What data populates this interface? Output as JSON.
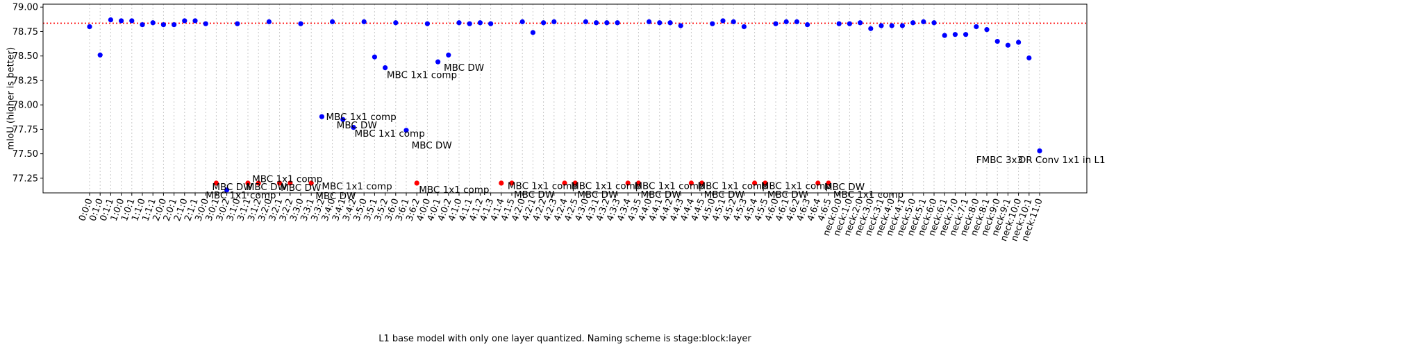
{
  "chart_data": {
    "type": "scatter",
    "xlabel": "L1 base model with only one layer quantized. Naming scheme is stage:block:layer",
    "ylabel": "mIoU (higher is better)",
    "ylim": [
      77.1,
      79.03
    ],
    "yticks": [
      "77.25",
      "77.50",
      "77.75",
      "78.00",
      "78.25",
      "78.50",
      "78.75",
      "79.00"
    ],
    "baseline": 78.835,
    "grid": "vertical dotted at each category",
    "colors": {
      "blue": "#0000ff",
      "red": "#ff0000",
      "baseline": "#ff0000",
      "grid": "#c8c8c8"
    },
    "categories": [
      "0:0:0",
      "0:1:0",
      "0:1:1",
      "1:0:0",
      "1:0:1",
      "1:1:0",
      "1:1:1",
      "2:0:0",
      "2:0:1",
      "2:1:0",
      "2:1:1",
      "3:0:0",
      "3:0:1",
      "3:0:2",
      "3:1:0",
      "3:1:1",
      "3:1:2",
      "3:2:0",
      "3:2:1",
      "3:2:2",
      "3:3:0",
      "3:3:1",
      "3:3:2",
      "3:4:0",
      "3:4:1",
      "3:4:2",
      "3:5:0",
      "3:5:1",
      "3:5:2",
      "3:6:0",
      "3:6:1",
      "3:6:2",
      "4:0:0",
      "4:0:1",
      "4:0:2",
      "4:1:0",
      "4:1:1",
      "4:1:2",
      "4:1:3",
      "4:1:4",
      "4:1:5",
      "4:2:0",
      "4:2:1",
      "4:2:2",
      "4:2:3",
      "4:2:4",
      "4:2:5",
      "4:3:0",
      "4:3:1",
      "4:3:2",
      "4:3:3",
      "4:3:4",
      "4:3:5",
      "4:4:0",
      "4:4:1",
      "4:4:2",
      "4:4:3",
      "4:4:4",
      "4:4:5",
      "4:5:0",
      "4:5:1",
      "4:5:2",
      "4:5:3",
      "4:5:4",
      "4:5:5",
      "4:6:0",
      "4:6:1",
      "4:6:2",
      "4:6:3",
      "4:6:4",
      "4:6:5",
      "neck:0:0",
      "neck:1:0",
      "neck:2:0",
      "neck:3:0",
      "neck:3:1",
      "neck:4:0",
      "neck:4:1",
      "neck:5:0",
      "neck:5:1",
      "neck:6:0",
      "neck:6:1",
      "neck:7:0",
      "neck:7:1",
      "neck:8:0",
      "neck:8:1",
      "neck:9:0",
      "neck:9:1",
      "neck:10:0",
      "neck:10:1",
      "neck:11:0"
    ],
    "points": [
      {
        "i": 0,
        "y": 78.8,
        "c": "blue"
      },
      {
        "i": 1,
        "y": 78.51,
        "c": "blue"
      },
      {
        "i": 2,
        "y": 78.87,
        "c": "blue"
      },
      {
        "i": 3,
        "y": 78.86,
        "c": "blue"
      },
      {
        "i": 4,
        "y": 78.86,
        "c": "blue"
      },
      {
        "i": 5,
        "y": 78.82,
        "c": "blue"
      },
      {
        "i": 6,
        "y": 78.84,
        "c": "blue"
      },
      {
        "i": 7,
        "y": 78.82,
        "c": "blue"
      },
      {
        "i": 8,
        "y": 78.82,
        "c": "blue"
      },
      {
        "i": 9,
        "y": 78.86,
        "c": "blue"
      },
      {
        "i": 10,
        "y": 78.86,
        "c": "blue"
      },
      {
        "i": 11,
        "y": 78.83,
        "c": "blue"
      },
      {
        "i": 12,
        "y": 77.2,
        "c": "red"
      },
      {
        "i": 13,
        "y": 77.13,
        "c": "blue"
      },
      {
        "i": 14,
        "y": 78.83,
        "c": "blue"
      },
      {
        "i": 15,
        "y": 77.2,
        "c": "red"
      },
      {
        "i": 16,
        "y": 77.2,
        "c": "red"
      },
      {
        "i": 17,
        "y": 78.85,
        "c": "blue"
      },
      {
        "i": 18,
        "y": 77.2,
        "c": "red"
      },
      {
        "i": 19,
        "y": 77.2,
        "c": "red"
      },
      {
        "i": 20,
        "y": 78.83,
        "c": "blue"
      },
      {
        "i": 21,
        "y": 77.2,
        "c": "red"
      },
      {
        "i": 22,
        "y": 77.88,
        "c": "blue"
      },
      {
        "i": 23,
        "y": 78.85,
        "c": "blue"
      },
      {
        "i": 24,
        "y": 77.85,
        "c": "blue"
      },
      {
        "i": 25,
        "y": 77.77,
        "c": "blue"
      },
      {
        "i": 26,
        "y": 78.85,
        "c": "blue"
      },
      {
        "i": 27,
        "y": 78.49,
        "c": "blue"
      },
      {
        "i": 28,
        "y": 78.38,
        "c": "blue"
      },
      {
        "i": 29,
        "y": 78.84,
        "c": "blue"
      },
      {
        "i": 30,
        "y": 77.74,
        "c": "blue"
      },
      {
        "i": 31,
        "y": 77.2,
        "c": "red"
      },
      {
        "i": 32,
        "y": 78.83,
        "c": "blue"
      },
      {
        "i": 33,
        "y": 78.44,
        "c": "blue"
      },
      {
        "i": 34,
        "y": 78.51,
        "c": "blue"
      },
      {
        "i": 35,
        "y": 78.84,
        "c": "blue"
      },
      {
        "i": 36,
        "y": 78.83,
        "c": "blue"
      },
      {
        "i": 37,
        "y": 78.84,
        "c": "blue"
      },
      {
        "i": 38,
        "y": 78.83,
        "c": "blue"
      },
      {
        "i": 39,
        "y": 77.2,
        "c": "red"
      },
      {
        "i": 40,
        "y": 77.2,
        "c": "red"
      },
      {
        "i": 41,
        "y": 78.85,
        "c": "blue"
      },
      {
        "i": 42,
        "y": 78.74,
        "c": "blue"
      },
      {
        "i": 43,
        "y": 78.84,
        "c": "blue"
      },
      {
        "i": 44,
        "y": 78.85,
        "c": "blue"
      },
      {
        "i": 45,
        "y": 77.2,
        "c": "red"
      },
      {
        "i": 46,
        "y": 77.2,
        "c": "red"
      },
      {
        "i": 47,
        "y": 78.85,
        "c": "blue"
      },
      {
        "i": 48,
        "y": 78.84,
        "c": "blue"
      },
      {
        "i": 49,
        "y": 78.84,
        "c": "blue"
      },
      {
        "i": 50,
        "y": 78.84,
        "c": "blue"
      },
      {
        "i": 51,
        "y": 77.2,
        "c": "red"
      },
      {
        "i": 52,
        "y": 77.2,
        "c": "red"
      },
      {
        "i": 53,
        "y": 78.85,
        "c": "blue"
      },
      {
        "i": 54,
        "y": 78.84,
        "c": "blue"
      },
      {
        "i": 55,
        "y": 78.84,
        "c": "blue"
      },
      {
        "i": 56,
        "y": 78.81,
        "c": "blue"
      },
      {
        "i": 57,
        "y": 77.2,
        "c": "red"
      },
      {
        "i": 58,
        "y": 77.2,
        "c": "red"
      },
      {
        "i": 59,
        "y": 78.83,
        "c": "blue"
      },
      {
        "i": 60,
        "y": 78.86,
        "c": "blue"
      },
      {
        "i": 61,
        "y": 78.85,
        "c": "blue"
      },
      {
        "i": 62,
        "y": 78.8,
        "c": "blue"
      },
      {
        "i": 63,
        "y": 77.2,
        "c": "red"
      },
      {
        "i": 64,
        "y": 77.2,
        "c": "red"
      },
      {
        "i": 65,
        "y": 78.83,
        "c": "blue"
      },
      {
        "i": 66,
        "y": 78.85,
        "c": "blue"
      },
      {
        "i": 67,
        "y": 78.85,
        "c": "blue"
      },
      {
        "i": 68,
        "y": 78.82,
        "c": "blue"
      },
      {
        "i": 69,
        "y": 77.2,
        "c": "red"
      },
      {
        "i": 70,
        "y": 77.2,
        "c": "red"
      },
      {
        "i": 71,
        "y": 78.83,
        "c": "blue"
      },
      {
        "i": 72,
        "y": 78.83,
        "c": "blue"
      },
      {
        "i": 73,
        "y": 78.84,
        "c": "blue"
      },
      {
        "i": 74,
        "y": 78.78,
        "c": "blue"
      },
      {
        "i": 75,
        "y": 78.81,
        "c": "blue"
      },
      {
        "i": 76,
        "y": 78.81,
        "c": "blue"
      },
      {
        "i": 77,
        "y": 78.81,
        "c": "blue"
      },
      {
        "i": 78,
        "y": 78.84,
        "c": "blue"
      },
      {
        "i": 79,
        "y": 78.85,
        "c": "blue"
      },
      {
        "i": 80,
        "y": 78.84,
        "c": "blue"
      },
      {
        "i": 81,
        "y": 78.71,
        "c": "blue"
      },
      {
        "i": 82,
        "y": 78.72,
        "c": "blue"
      },
      {
        "i": 83,
        "y": 78.72,
        "c": "blue"
      },
      {
        "i": 84,
        "y": 78.8,
        "c": "blue"
      },
      {
        "i": 85,
        "y": 78.77,
        "c": "blue"
      },
      {
        "i": 86,
        "y": 78.65,
        "c": "blue"
      },
      {
        "i": 87,
        "y": 78.61,
        "c": "blue"
      },
      {
        "i": 88,
        "y": 78.64,
        "c": "blue"
      },
      {
        "i": 89,
        "y": 78.48,
        "c": "blue"
      },
      {
        "i": 90,
        "y": 77.53,
        "c": "blue"
      }
    ],
    "annotations": [
      {
        "text": "MBC DW",
        "x": 11.6,
        "y": 77.165
      },
      {
        "text": "MBC 1x1 comp",
        "x": 11.0,
        "y": 77.08
      },
      {
        "text": "MBC DW",
        "x": 14.85,
        "y": 77.165
      },
      {
        "text": "MBC 1x1 comp",
        "x": 15.4,
        "y": 77.245
      },
      {
        "text": "MBC DW",
        "x": 18.1,
        "y": 77.155
      },
      {
        "text": "MBC DW",
        "x": 21.4,
        "y": 77.07
      },
      {
        "text": "MBC 1x1 comp",
        "x": 22.0,
        "y": 77.17
      },
      {
        "text": "MBC 1x1 comp",
        "x": 22.4,
        "y": 77.88
      },
      {
        "text": "MBC DW",
        "x": 23.4,
        "y": 77.795
      },
      {
        "text": "MBC 1x1 comp",
        "x": 25.1,
        "y": 77.71
      },
      {
        "text": "MBC 1x1 comp",
        "x": 28.15,
        "y": 78.31
      },
      {
        "text": "MBC DW",
        "x": 30.5,
        "y": 77.59
      },
      {
        "text": "MBC 1x1 comp",
        "x": 31.2,
        "y": 77.135
      },
      {
        "text": "MBC DW",
        "x": 33.55,
        "y": 78.385
      },
      {
        "text": "MBC 1x1 comp",
        "x": 39.6,
        "y": 77.175
      },
      {
        "text": "MBC DW",
        "x": 40.2,
        "y": 77.085
      },
      {
        "text": "MBC 1x1 comp",
        "x": 45.6,
        "y": 77.175
      },
      {
        "text": "MBC DW",
        "x": 46.2,
        "y": 77.085
      },
      {
        "text": "MBC 1x1 comp",
        "x": 51.6,
        "y": 77.175
      },
      {
        "text": "MBC DW",
        "x": 52.2,
        "y": 77.085
      },
      {
        "text": "MBC 1x1 comp",
        "x": 57.6,
        "y": 77.175
      },
      {
        "text": "MBC DW",
        "x": 58.2,
        "y": 77.085
      },
      {
        "text": "MBC 1x1 comp",
        "x": 63.6,
        "y": 77.175
      },
      {
        "text": "MBC DW",
        "x": 64.2,
        "y": 77.085
      },
      {
        "text": "MBC DW",
        "x": 69.6,
        "y": 77.165
      },
      {
        "text": "MBC 1x1 comp",
        "x": 70.45,
        "y": 77.085
      },
      {
        "text": "FMBC 3x3",
        "x": 84.0,
        "y": 77.44
      },
      {
        "text": "OR Conv 1x1 in L1",
        "x": 88.0,
        "y": 77.44
      }
    ]
  }
}
